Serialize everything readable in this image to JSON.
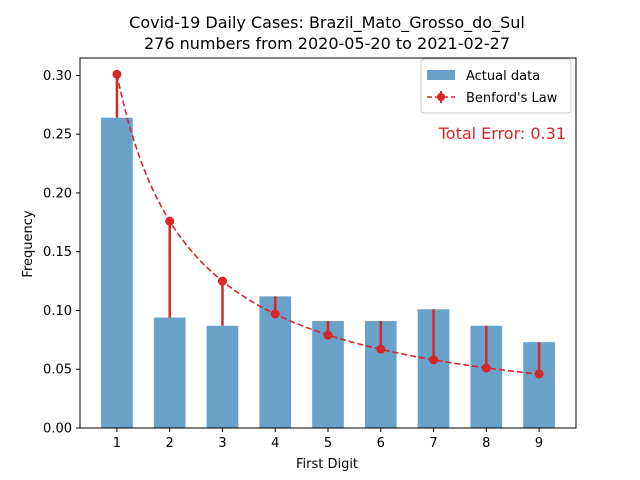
{
  "chart_data": {
    "type": "bar",
    "title": "Covid-19 Daily Cases: Brazil_Mato_Grosso_do_Sul",
    "subtitle": "276 numbers from 2020-05-20 to 2021-02-27",
    "xlabel": "First Digit",
    "ylabel": "Frequency",
    "categories": [
      "1",
      "2",
      "3",
      "4",
      "5",
      "6",
      "7",
      "8",
      "9"
    ],
    "ylim": [
      0,
      0.3
    ],
    "y_ticks": [
      "0.00",
      "0.05",
      "0.10",
      "0.15",
      "0.20",
      "0.25",
      "0.30"
    ],
    "grid": false,
    "legend": "top-right",
    "series": [
      {
        "name": "Actual data",
        "kind": "bar",
        "color": "#6aa1c9",
        "values": [
          0.264,
          0.094,
          0.087,
          0.112,
          0.091,
          0.091,
          0.101,
          0.087,
          0.073
        ]
      },
      {
        "name": "Benford's Law",
        "kind": "line",
        "color": "#d62728",
        "values": [
          0.301,
          0.176,
          0.125,
          0.097,
          0.079,
          0.067,
          0.058,
          0.051,
          0.046
        ]
      }
    ],
    "annotation": "Total Error: 0.31"
  }
}
